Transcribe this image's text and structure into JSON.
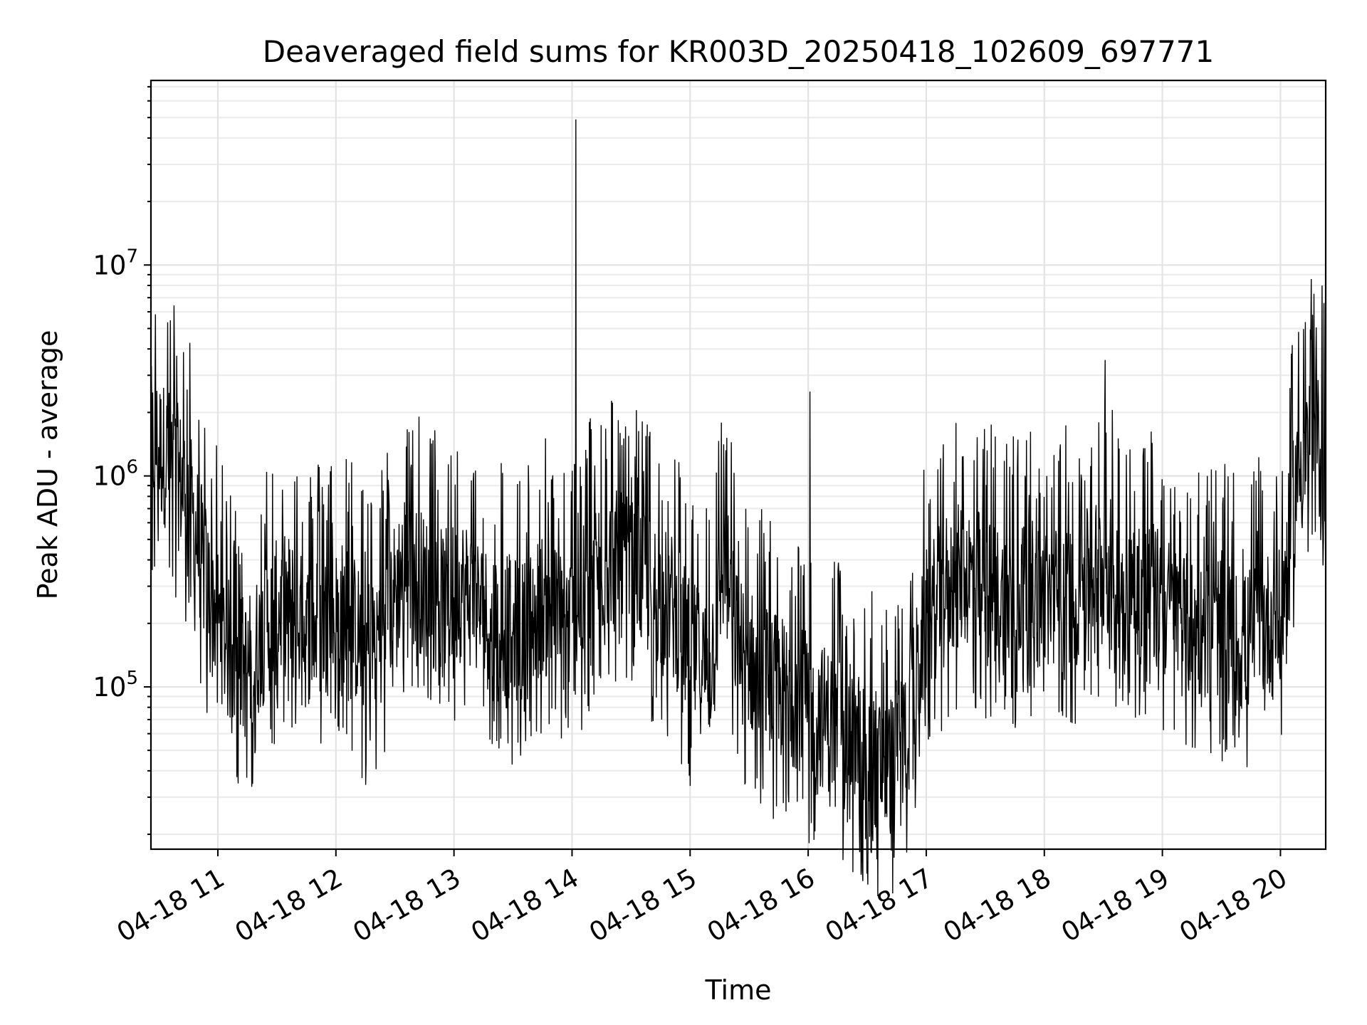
{
  "chart_data": {
    "type": "line",
    "title": "Deaveraged field sums for KR003D_20250418_102609_697771",
    "xlabel": "Time",
    "ylabel": "Peak ADU - average",
    "yscale": "log",
    "ylim": [
      17000,
      75000000
    ],
    "xlim": [
      "04-18 10:26",
      "04-18 20:23"
    ],
    "grid": true,
    "line_color": "#000000",
    "x_ticks": [
      "04-18 11",
      "04-18 12",
      "04-18 13",
      "04-18 14",
      "04-18 15",
      "04-18 16",
      "04-18 17",
      "04-18 18",
      "04-18 19",
      "04-18 20"
    ],
    "y_ticks": [
      {
        "exp": "5",
        "value": 100000
      },
      {
        "exp": "6",
        "value": 1000000
      },
      {
        "exp": "7",
        "value": 10000000
      }
    ],
    "series": [
      {
        "x": [
          "04-18 10:26",
          "04-18 10:35",
          "04-18 10:45",
          "04-18 10:55",
          "04-18 11:05",
          "04-18 11:15",
          "04-18 11:25",
          "04-18 11:35",
          "04-18 11:45",
          "04-18 11:55",
          "04-18 12:05",
          "04-18 12:15",
          "04-18 12:25",
          "04-18 12:35",
          "04-18 12:45",
          "04-18 12:55",
          "04-18 13:05",
          "04-18 13:15",
          "04-18 13:25",
          "04-18 13:35",
          "04-18 13:45",
          "04-18 13:55",
          "04-18 14:02",
          "04-18 14:10",
          "04-18 14:20",
          "04-18 14:30",
          "04-18 14:40",
          "04-18 14:50",
          "04-18 15:00",
          "04-18 15:10",
          "04-18 15:17",
          "04-18 15:25",
          "04-18 15:35",
          "04-18 15:45",
          "04-18 15:55",
          "04-18 16:01",
          "04-18 16:10",
          "04-18 16:20",
          "04-18 16:30",
          "04-18 16:40",
          "04-18 16:50",
          "04-18 17:00",
          "04-18 17:10",
          "04-18 17:20",
          "04-18 17:30",
          "04-18 17:40",
          "04-18 17:50",
          "04-18 18:00",
          "04-18 18:10",
          "04-18 18:20",
          "04-18 18:30",
          "04-18 18:40",
          "04-18 18:50",
          "04-18 19:00",
          "04-18 19:10",
          "04-18 19:20",
          "04-18 19:30",
          "04-18 19:40",
          "04-18 19:50",
          "04-18 20:00",
          "04-18 20:08",
          "04-18 20:15",
          "04-18 20:23"
        ],
        "y": [
          1500000,
          1200000,
          800000,
          300000,
          150000,
          120000,
          200000,
          250000,
          180000,
          200000,
          230000,
          150000,
          200000,
          400000,
          300000,
          250000,
          300000,
          220000,
          200000,
          180000,
          250000,
          200000,
          200000,
          350000,
          400000,
          350000,
          300000,
          250000,
          150000,
          120000,
          400000,
          150000,
          120000,
          100000,
          90000,
          80000,
          70000,
          60000,
          50000,
          40000,
          60000,
          200000,
          300000,
          350000,
          300000,
          250000,
          300000,
          250000,
          280000,
          300000,
          400000,
          300000,
          300000,
          250000,
          200000,
          180000,
          200000,
          150000,
          200000,
          200000,
          1000000,
          1400000,
          1300000
        ]
      }
    ]
  }
}
